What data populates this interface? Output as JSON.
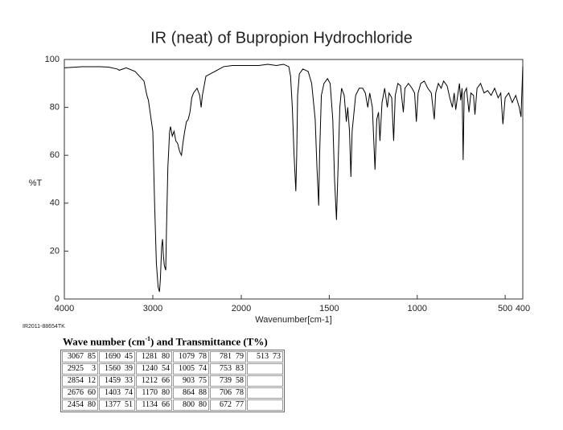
{
  "chart_data": {
    "type": "line",
    "title": "IR (neat) of Bupropion Hydrochloride",
    "y_label": "%T",
    "x_label": "Wavenumber[cm-1]",
    "code": "IR2011-88654TK",
    "color": "#000000",
    "xlim": [
      4000,
      400
    ],
    "x_scale_break": 2000,
    "xticks": [
      4000,
      3000,
      2000,
      1500,
      1000,
      500,
      400
    ],
    "ylim": [
      0,
      100
    ],
    "yticks": [
      0,
      20,
      40,
      60,
      80,
      100
    ],
    "x": [
      4000,
      3800,
      3600,
      3500,
      3400,
      3380,
      3300,
      3200,
      3100,
      3067,
      3050,
      3000,
      2980,
      2960,
      2940,
      2925,
      2915,
      2900,
      2890,
      2880,
      2870,
      2854,
      2845,
      2830,
      2810,
      2800,
      2780,
      2760,
      2740,
      2720,
      2700,
      2690,
      2676,
      2660,
      2640,
      2620,
      2600,
      2580,
      2560,
      2540,
      2500,
      2470,
      2454,
      2440,
      2420,
      2400,
      2300,
      2200,
      2100,
      2000,
      1900,
      1850,
      1800,
      1760,
      1730,
      1720,
      1710,
      1700,
      1690,
      1685,
      1680,
      1670,
      1650,
      1620,
      1600,
      1580,
      1570,
      1560,
      1555,
      1545,
      1530,
      1510,
      1495,
      1480,
      1470,
      1459,
      1450,
      1440,
      1430,
      1415,
      1403,
      1395,
      1385,
      1377,
      1370,
      1350,
      1330,
      1310,
      1295,
      1281,
      1270,
      1255,
      1240,
      1230,
      1220,
      1212,
      1200,
      1185,
      1170,
      1160,
      1145,
      1134,
      1125,
      1110,
      1095,
      1079,
      1070,
      1050,
      1030,
      1015,
      1005,
      995,
      980,
      960,
      940,
      920,
      903,
      895,
      880,
      864,
      850,
      830,
      815,
      800,
      790,
      781,
      770,
      760,
      753,
      745,
      739,
      733,
      720,
      706,
      695,
      680,
      672,
      660,
      640,
      620,
      600,
      580,
      560,
      540,
      525,
      513,
      500,
      480,
      460,
      440,
      420,
      410,
      400
    ],
    "values": [
      96.5,
      97,
      97,
      96.8,
      96,
      95.5,
      96.5,
      95,
      91,
      85,
      83,
      70,
      40,
      15,
      5,
      3,
      8,
      22,
      25,
      18,
      14,
      12,
      30,
      55,
      70,
      72,
      68,
      70,
      66,
      65,
      62,
      61,
      60,
      65,
      70,
      74,
      75,
      78,
      84,
      86,
      88,
      85,
      80,
      85,
      89,
      93,
      95,
      97,
      97.5,
      97.5,
      97.5,
      98,
      97.5,
      98,
      97,
      93,
      80,
      60,
      45,
      60,
      85,
      94,
      96,
      95,
      90,
      75,
      55,
      39,
      60,
      85,
      90,
      92,
      90,
      75,
      50,
      33,
      55,
      80,
      88,
      85,
      74,
      80,
      70,
      51,
      70,
      85,
      88,
      88,
      86,
      80,
      86,
      80,
      54,
      75,
      78,
      66,
      82,
      88,
      80,
      86,
      84,
      66,
      85,
      90,
      89,
      78,
      88,
      90,
      88,
      86,
      74,
      86,
      90,
      91,
      88,
      86,
      75,
      86,
      90,
      88,
      91,
      89,
      84,
      80,
      86,
      79,
      85,
      90,
      83,
      88,
      58,
      86,
      88,
      78,
      86,
      85,
      77,
      88,
      90,
      86,
      87,
      85,
      88,
      84,
      86,
      73,
      84,
      86,
      82,
      85,
      80,
      76,
      97
    ]
  },
  "table": {
    "title": [
      "Wave number (cm",
      "-1",
      ") and Transmittance (T%)"
    ],
    "columns": [
      [
        [
          3067,
          85
        ],
        [
          2925,
          3
        ],
        [
          2854,
          12
        ],
        [
          2676,
          60
        ],
        [
          2454,
          80
        ]
      ],
      [
        [
          1690,
          45
        ],
        [
          1560,
          39
        ],
        [
          1459,
          33
        ],
        [
          1403,
          74
        ],
        [
          1377,
          51
        ]
      ],
      [
        [
          1281,
          80
        ],
        [
          1240,
          54
        ],
        [
          1212,
          66
        ],
        [
          1170,
          80
        ],
        [
          1134,
          66
        ]
      ],
      [
        [
          1079,
          78
        ],
        [
          1005,
          74
        ],
        [
          903,
          75
        ],
        [
          864,
          88
        ],
        [
          800,
          80
        ]
      ],
      [
        [
          781,
          79
        ],
        [
          753,
          83
        ],
        [
          739,
          58
        ],
        [
          706,
          78
        ],
        [
          672,
          77
        ]
      ],
      [
        [
          513,
          73
        ]
      ]
    ]
  }
}
